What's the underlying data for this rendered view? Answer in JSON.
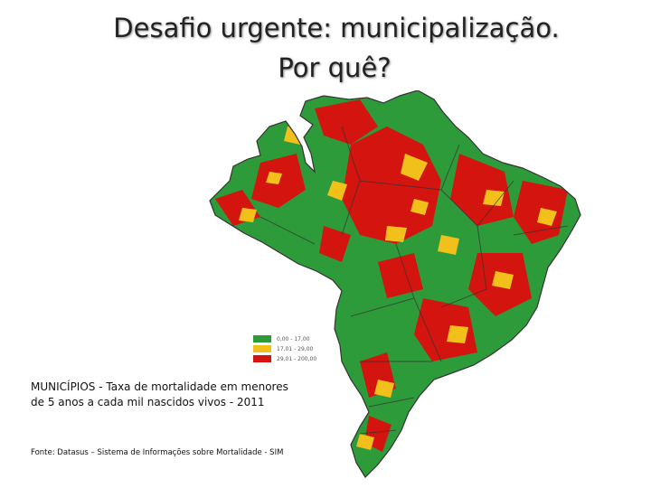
{
  "title": {
    "line1": "Desafio urgente: municipalização.",
    "line2": "Por quê?"
  },
  "map": {
    "colors": {
      "low": "#2e9b3a",
      "mid": "#f2c01a",
      "high": "#d4140f",
      "border": "#333333"
    }
  },
  "legend": {
    "items": [
      {
        "label": "0,00 - 17,00",
        "color": "#2e9b3a"
      },
      {
        "label": "17,01 - 29,00",
        "color": "#f2c01a"
      },
      {
        "label": "29,01 - 200,00",
        "color": "#d4140f"
      }
    ]
  },
  "caption": {
    "line1": "MUNICÍPIOS - Taxa de mortalidade em menores",
    "line2": "de 5 anos a cada mil nascidos vivos - 2011"
  },
  "source": "Fonte: Datasus – Sistema de Informações sobre Mortalidade - SIM"
}
